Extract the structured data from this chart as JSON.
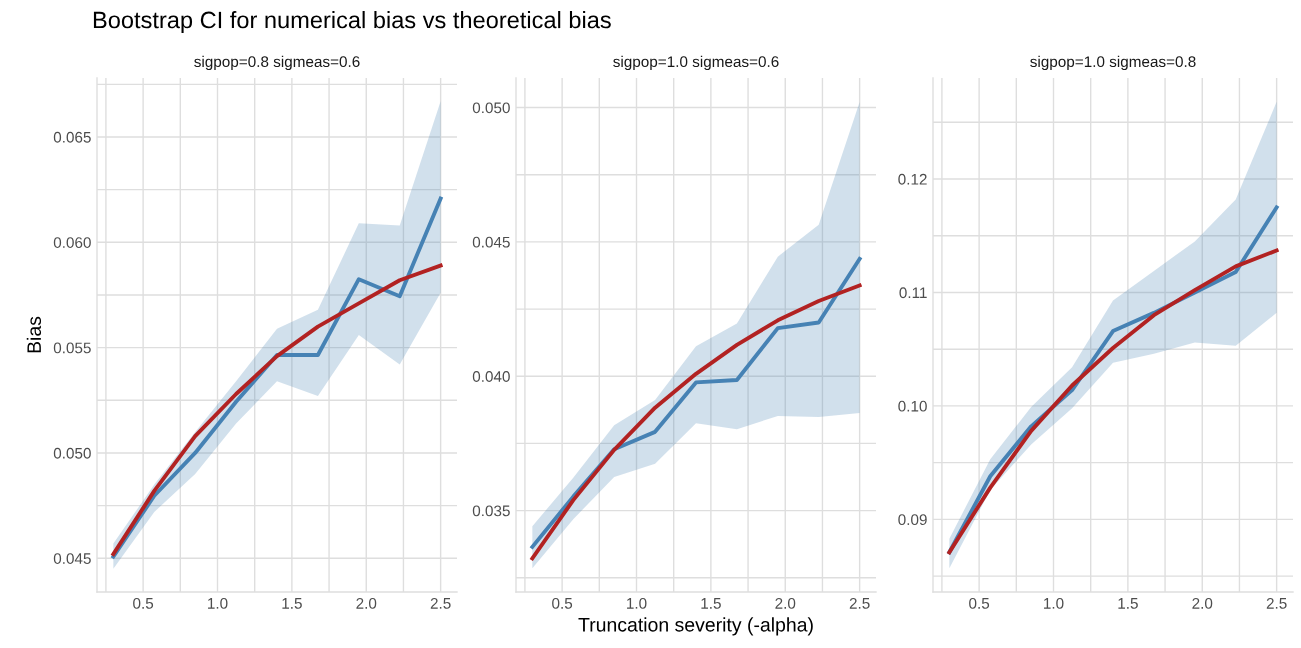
{
  "chart_data": [
    {
      "type": "line",
      "title": "Bootstrap CI for numerical bias vs theoretical bias",
      "subtitle": "sigpop=0.8 sigmeas=0.6",
      "ylabel": "Bias",
      "x": [
        0.3,
        0.575,
        0.85,
        1.125,
        1.4,
        1.675,
        1.95,
        2.225,
        2.5
      ],
      "series": [
        {
          "color": "#4682b4",
          "values": [
            0.04508,
            0.04797,
            0.05,
            0.05243,
            0.05465,
            0.05465,
            0.05825,
            0.05744,
            0.06208
          ],
          "lower": [
            0.0445,
            0.0472,
            0.049,
            0.0514,
            0.0534,
            0.0527,
            0.0556,
            0.0542,
            0.0576
          ],
          "upper": [
            0.0457,
            0.0485,
            0.051,
            0.0534,
            0.0559,
            0.0568,
            0.0609,
            0.0608,
            0.0667
          ]
        },
        {
          "color": "#b22222",
          "values": [
            0.0452,
            0.0482,
            0.0508,
            0.0528,
            0.0546,
            0.056,
            0.0571,
            0.0582,
            0.0589
          ]
        }
      ],
      "xlim": [
        0.19,
        2.61
      ],
      "xticks": [
        {
          "value": 0.25,
          "label": null
        },
        0.5,
        {
          "value": 0.75,
          "label": null
        },
        {
          "value": 1.0,
          "label": "1.0"
        },
        {
          "value": 1.25,
          "label": null
        },
        1.5,
        {
          "value": 1.75,
          "label": null
        },
        {
          "value": 2.0,
          "label": "2.0"
        },
        {
          "value": 2.25,
          "label": null
        },
        2.5
      ],
      "ylim": [
        0.0434,
        0.0678
      ],
      "yticks": [
        0.045,
        {
          "value": 0.0475,
          "label": null
        },
        {
          "value": 0.05,
          "label": "0.050"
        },
        {
          "value": 0.0525,
          "label": null
        },
        0.055,
        {
          "value": 0.0575,
          "label": null
        },
        {
          "value": 0.06,
          "label": "0.060"
        },
        {
          "value": 0.0625,
          "label": null
        },
        0.065,
        {
          "value": 0.0675,
          "label": null
        }
      ],
      "grid": true,
      "line_style": "solid",
      "marker": "none"
    },
    {
      "type": "line",
      "subtitle": "sigpop=1.0 sigmeas=0.6",
      "xlabel": "Truncation severity (-alpha)",
      "x": [
        0.3,
        0.575,
        0.85,
        1.125,
        1.4,
        1.675,
        1.95,
        2.225,
        2.5
      ],
      "series": [
        {
          "color": "#4682b4",
          "values": [
            0.03365,
            0.03552,
            0.03728,
            0.03793,
            0.03977,
            0.03986,
            0.04179,
            0.042,
            0.04437
          ],
          "lower": [
            0.03285,
            0.03468,
            0.03625,
            0.03674,
            0.03825,
            0.03803,
            0.03852,
            0.03848,
            0.03863
          ],
          "upper": [
            0.03442,
            0.03622,
            0.03818,
            0.03912,
            0.04112,
            0.04196,
            0.04445,
            0.04564,
            0.05021
          ]
        },
        {
          "color": "#b22222",
          "values": [
            0.03322,
            0.03539,
            0.03726,
            0.03883,
            0.04009,
            0.04117,
            0.04208,
            0.0428,
            0.04338
          ]
        }
      ],
      "xlim": [
        0.19,
        2.61
      ],
      "xticks": [
        {
          "value": 0.25,
          "label": null
        },
        0.5,
        {
          "value": 0.75,
          "label": null
        },
        {
          "value": 1.0,
          "label": "1.0"
        },
        {
          "value": 1.25,
          "label": null
        },
        1.5,
        {
          "value": 1.75,
          "label": null
        },
        {
          "value": 2.0,
          "label": "2.0"
        },
        {
          "value": 2.25,
          "label": null
        },
        2.5
      ],
      "ylim": [
        0.03197,
        0.0511
      ],
      "yticks": [
        {
          "value": 0.0325,
          "label": null
        },
        0.035,
        {
          "value": 0.0375,
          "label": null
        },
        {
          "value": 0.04,
          "label": "0.040"
        },
        {
          "value": 0.0425,
          "label": null
        },
        0.045,
        {
          "value": 0.0475,
          "label": null
        },
        {
          "value": 0.05,
          "label": "0.050"
        }
      ],
      "grid": true,
      "line_style": "solid",
      "marker": "none"
    },
    {
      "type": "line",
      "subtitle": "sigpop=1.0 sigmeas=0.8",
      "x": [
        0.3,
        0.575,
        0.85,
        1.125,
        1.4,
        1.675,
        1.95,
        2.225,
        2.5
      ],
      "series": [
        {
          "color": "#4682b4",
          "values": [
            0.0871,
            0.0938,
            0.0982,
            0.1014,
            0.1066,
            0.1082,
            0.11,
            0.1118,
            0.1175
          ],
          "lower": [
            0.0857,
            0.0926,
            0.0966,
            0.0998,
            0.1038,
            0.1046,
            0.1056,
            0.1053,
            0.1082
          ],
          "upper": [
            0.0883,
            0.0953,
            0.0999,
            0.1034,
            0.1093,
            0.1119,
            0.1145,
            0.1182,
            0.1268
          ]
        },
        {
          "color": "#b22222",
          "values": [
            0.0871,
            0.0928,
            0.0978,
            0.1018,
            0.1051,
            0.108,
            0.1102,
            0.1123,
            0.1137
          ]
        }
      ],
      "xlim": [
        0.19,
        2.61
      ],
      "xticks": [
        {
          "value": 0.25,
          "label": null
        },
        0.5,
        {
          "value": 0.75,
          "label": null
        },
        {
          "value": 1.0,
          "label": "1.0"
        },
        {
          "value": 1.25,
          "label": null
        },
        1.5,
        {
          "value": 1.75,
          "label": null
        },
        {
          "value": 2.0,
          "label": "2.0"
        },
        {
          "value": 2.25,
          "label": null
        },
        2.5
      ],
      "ylim": [
        0.0836,
        0.1289
      ],
      "yticks": [
        {
          "value": 0.085,
          "label": null
        },
        0.09,
        {
          "value": 0.095,
          "label": null
        },
        {
          "value": 0.1,
          "label": "0.10"
        },
        {
          "value": 0.105,
          "label": null
        },
        0.11,
        {
          "value": 0.115,
          "label": null
        },
        0.12,
        {
          "value": 0.125,
          "label": null
        }
      ],
      "grid": true,
      "line_style": "solid",
      "marker": "none"
    }
  ]
}
